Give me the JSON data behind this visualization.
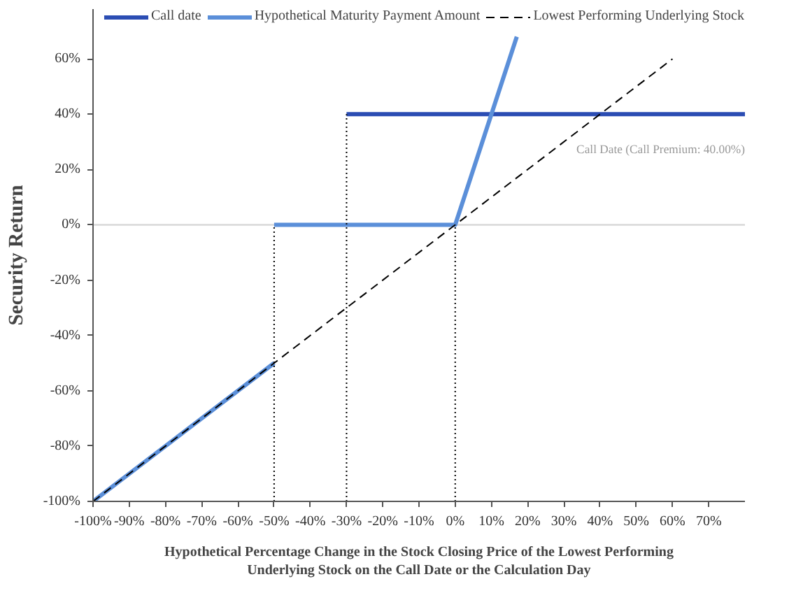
{
  "chart_data": {
    "type": "line",
    "xlabel": "Hypothetical Percentage Change in the Stock Closing Price of the Lowest Performing\nUnderlying Stock on the Call Date or the Calculation Day",
    "ylabel": "Security Return",
    "xlim": [
      -100,
      80
    ],
    "ylim": [
      -100,
      78
    ],
    "xticks": [
      {
        "value": -100,
        "label": "-100%"
      },
      {
        "value": -90,
        "label": "-90%"
      },
      {
        "value": -80,
        "label": "-80%"
      },
      {
        "value": -70,
        "label": "-70%"
      },
      {
        "value": -60,
        "label": "-60%"
      },
      {
        "value": -50,
        "label": "-50%"
      },
      {
        "value": -40,
        "label": "-40%"
      },
      {
        "value": -30,
        "label": "-30%"
      },
      {
        "value": -20,
        "label": "-20%"
      },
      {
        "value": -10,
        "label": "-10%"
      },
      {
        "value": 0,
        "label": "0%"
      },
      {
        "value": 10,
        "label": "10%"
      },
      {
        "value": 20,
        "label": "20%"
      },
      {
        "value": 30,
        "label": "30%"
      },
      {
        "value": 40,
        "label": "40%"
      },
      {
        "value": 50,
        "label": "50%"
      },
      {
        "value": 60,
        "label": "60%"
      },
      {
        "value": 70,
        "label": "70%"
      }
    ],
    "yticks": [
      {
        "value": -100,
        "label": "-100%"
      },
      {
        "value": -80,
        "label": "-80%"
      },
      {
        "value": -60,
        "label": "-60%"
      },
      {
        "value": -40,
        "label": "-40%"
      },
      {
        "value": -20,
        "label": "-20%"
      },
      {
        "value": 0,
        "label": "0%"
      },
      {
        "value": 20,
        "label": "20%"
      },
      {
        "value": 40,
        "label": "40%"
      },
      {
        "value": 60,
        "label": "60%"
      }
    ],
    "series": [
      {
        "name": "Call date",
        "color": "#2b4db3",
        "x": [
          -30,
          80
        ],
        "values": [
          40,
          40
        ]
      },
      {
        "name": "Hypothetical Maturity Payment Amount",
        "color": "#5b8fd9",
        "x": [
          -100,
          -50,
          null,
          -50,
          0,
          17
        ],
        "values": [
          -100,
          -50,
          null,
          0,
          0,
          68
        ]
      },
      {
        "name": "Lowest Performing Underlying Stock",
        "color": "#000000",
        "line_style": "dashed",
        "x": [
          -100,
          60
        ],
        "values": [
          -100,
          60
        ]
      },
      {
        "color": "#000000",
        "line_style": "dotted",
        "x": [
          -50,
          -50
        ],
        "values": [
          -100,
          0
        ]
      },
      {
        "color": "#000000",
        "line_style": "dotted",
        "x": [
          -30,
          -30
        ],
        "values": [
          -100,
          40
        ]
      },
      {
        "color": "#000000",
        "line_style": "dotted",
        "x": [
          0,
          0
        ],
        "values": [
          -100,
          0
        ]
      }
    ],
    "ref_lines": [
      {
        "axis": "y",
        "value": 0,
        "color": "#d9d9d9"
      }
    ],
    "annotations": [
      "Call Date (Call Premium: 40.00%)"
    ],
    "grid": false,
    "legend": "top"
  }
}
